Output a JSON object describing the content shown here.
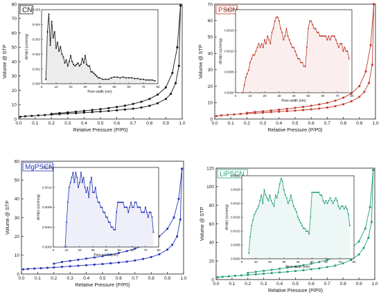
{
  "chart_data": [
    {
      "label": "CN",
      "color": "#111111",
      "type": "line",
      "xlabel": "Relative Pressure (P/P0)",
      "ylabel": "Volume @ STP",
      "xlim": [
        0.0,
        1.0
      ],
      "ylim": [
        0,
        80
      ],
      "xticks": [
        "0.0",
        "0.1",
        "0.2",
        "0.3",
        "0.4",
        "0.5",
        "0.6",
        "0.7",
        "0.8",
        "0.9",
        "1.0"
      ],
      "yticks": [
        "0",
        "10",
        "20",
        "30",
        "40",
        "50",
        "60",
        "70",
        "80"
      ],
      "series": [
        {
          "x": [
            0.01,
            0.04,
            0.08,
            0.12,
            0.16,
            0.2,
            0.25,
            0.3,
            0.35,
            0.4,
            0.45,
            0.5,
            0.55,
            0.6,
            0.65,
            0.7,
            0.75,
            0.8,
            0.85,
            0.9,
            0.93,
            0.96,
            0.98,
            0.99
          ],
          "y": [
            1.5,
            1.9,
            2.2,
            2.5,
            2.8,
            3.1,
            3.4,
            3.8,
            4.1,
            4.5,
            4.8,
            5.2,
            5.6,
            6.1,
            6.6,
            7.2,
            8.0,
            9.2,
            11.0,
            14.0,
            17.5,
            25,
            37,
            79
          ]
        },
        {
          "x": [
            0.99,
            0.97,
            0.94,
            0.9,
            0.85,
            0.8,
            0.75,
            0.7,
            0.65,
            0.6,
            0.55,
            0.5,
            0.45,
            0.4,
            0.35,
            0.3,
            0.25,
            0.2
          ],
          "y": [
            79,
            50,
            32,
            22,
            17,
            14,
            12,
            10.5,
            9.3,
            8.4,
            7.6,
            6.9,
            6.3,
            5.7,
            5.1,
            4.6,
            4.1,
            3.6
          ]
        }
      ],
      "inset": {
        "xlabel": "Pore width (nm)",
        "ylabel": "dV/d(r) (cc/nm/g)",
        "xlim": [
          0,
          80
        ],
        "ylim": [
          0,
          0.005
        ],
        "xticks": [
          "0",
          "10",
          "20",
          "30",
          "40",
          "50",
          "60",
          "70",
          "80"
        ],
        "yticks": [
          "0.000",
          "0.001",
          "0.002",
          "0.003",
          "0.004",
          "0.005"
        ],
        "x": [
          3,
          4,
          5,
          6,
          7,
          8,
          9,
          10,
          11,
          12,
          13,
          14,
          15,
          16,
          17,
          18,
          19,
          20,
          21,
          22,
          23,
          24,
          25,
          26,
          27,
          28,
          29,
          30,
          31,
          32,
          33,
          34,
          35,
          36,
          37,
          38,
          39,
          40,
          42,
          44,
          46,
          48,
          50,
          52,
          54,
          56,
          58,
          60,
          62,
          64,
          66,
          68,
          70,
          72,
          74,
          76,
          78
        ],
        "y": [
          0.0003,
          0.0035,
          0.0047,
          0.0026,
          0.0042,
          0.0031,
          0.0035,
          0.0024,
          0.0028,
          0.0022,
          0.0025,
          0.002,
          0.0018,
          0.0014,
          0.0016,
          0.0012,
          0.0015,
          0.0019,
          0.0015,
          0.0013,
          0.0012,
          0.0013,
          0.0014,
          0.0012,
          0.0013,
          0.0017,
          0.0014,
          0.0019,
          0.0013,
          0.0012,
          0.0012,
          0.0008,
          0.0008,
          0.0007,
          0.0006,
          0.0005,
          0.0004,
          0.0004,
          0.0003,
          0.0003,
          0.0003,
          0.0004,
          0.00045,
          0.00045,
          0.0004,
          0.00045,
          0.0004,
          0.0004,
          0.0004,
          0.00035,
          0.00035,
          0.0003,
          0.0003,
          0.00025,
          0.00025,
          0.00025,
          0.0002
        ]
      }
    },
    {
      "label": "PSCN",
      "color": "#c0392b",
      "type": "line",
      "xlabel": "Relative Pressure (P/P0)",
      "ylabel": "Volume @ STP",
      "xlim": [
        0.0,
        1.0
      ],
      "ylim": [
        0,
        70
      ],
      "xticks": [
        "0.0",
        "0.1",
        "0.2",
        "0.3",
        "0.4",
        "0.5",
        "0.6",
        "0.7",
        "0.8",
        "0.9",
        "1.0"
      ],
      "yticks": [
        "0",
        "10",
        "20",
        "30",
        "40",
        "50",
        "60",
        "70"
      ],
      "series": [
        {
          "x": [
            0.01,
            0.04,
            0.08,
            0.12,
            0.16,
            0.2,
            0.25,
            0.3,
            0.35,
            0.4,
            0.45,
            0.5,
            0.55,
            0.6,
            0.65,
            0.7,
            0.75,
            0.8,
            0.85,
            0.9,
            0.93,
            0.96,
            0.98,
            0.99
          ],
          "y": [
            1.8,
            2.2,
            2.5,
            2.8,
            3.1,
            3.3,
            3.6,
            3.9,
            4.2,
            4.5,
            4.8,
            5.1,
            5.5,
            5.9,
            6.4,
            7.0,
            7.8,
            9.0,
            10.8,
            13.5,
            16.5,
            22,
            33,
            70
          ]
        },
        {
          "x": [
            0.99,
            0.97,
            0.94,
            0.9,
            0.85,
            0.8,
            0.75,
            0.7,
            0.65,
            0.6,
            0.55,
            0.5,
            0.45,
            0.4,
            0.35,
            0.3,
            0.25,
            0.2
          ],
          "y": [
            70,
            45,
            29,
            20,
            15.5,
            13,
            11.2,
            9.9,
            8.9,
            8.1,
            7.4,
            6.8,
            6.2,
            5.7,
            5.2,
            4.7,
            4.3,
            3.8
          ]
        }
      ],
      "inset": {
        "xlabel": "Pore width (nm)",
        "ylabel": "dV/d(r) (cc/nm/g)",
        "xlim": [
          0,
          80
        ],
        "ylim": [
          0,
          0.0022
        ],
        "xticks": [
          "0",
          "10",
          "20",
          "30",
          "40",
          "50",
          "60",
          "70",
          "80"
        ],
        "yticks": [
          "0.0000",
          "0.0005",
          "0.0010",
          "0.0015",
          "0.0020"
        ],
        "x": [
          5,
          6,
          7,
          8,
          9,
          10,
          11,
          12,
          13,
          14,
          15,
          16,
          17,
          18,
          19,
          20,
          21,
          22,
          23,
          24,
          25,
          26,
          27,
          28,
          29,
          30,
          31,
          32,
          33,
          34,
          35,
          36,
          37,
          38,
          39,
          40,
          41,
          42,
          43,
          44,
          45,
          46,
          47,
          48,
          49,
          50,
          51,
          52,
          53,
          54,
          55,
          56,
          57,
          58,
          59,
          60,
          61,
          62,
          63,
          64,
          65,
          66,
          67,
          68,
          69,
          70,
          71,
          72,
          73,
          74,
          75,
          76,
          77,
          78
        ],
        "y": [
          0.0,
          0.0002,
          0.0004,
          0.0005,
          0.0006,
          0.0008,
          0.0009,
          0.001,
          0.001,
          0.0011,
          0.0012,
          0.0013,
          0.0012,
          0.0013,
          0.0012,
          0.0014,
          0.0013,
          0.0015,
          0.0014,
          0.0013,
          0.0016,
          0.0017,
          0.0019,
          0.002,
          0.002,
          0.0019,
          0.0017,
          0.0016,
          0.0014,
          0.0015,
          0.0017,
          0.0015,
          0.0014,
          0.0013,
          0.0012,
          0.0012,
          0.0011,
          0.001,
          0.0009,
          0.0009,
          0.0008,
          0.0008,
          0.0007,
          0.0007,
          0.0012,
          0.0017,
          0.0019,
          0.0019,
          0.0018,
          0.0017,
          0.0017,
          0.0016,
          0.0016,
          0.0015,
          0.0015,
          0.0015,
          0.0015,
          0.0015,
          0.0014,
          0.0015,
          0.0014,
          0.0015,
          0.0015,
          0.0015,
          0.0014,
          0.0013,
          0.0012,
          0.0013,
          0.0013,
          0.0011,
          0.0012,
          0.0011,
          0.0011,
          0.0009
        ]
      }
    },
    {
      "label": "MgPSCN",
      "color": "#2233b8",
      "type": "line",
      "xlabel": "Relative Pressure (P/P0)",
      "ylabel": "Volume @ STP",
      "xlim": [
        0.0,
        1.0
      ],
      "ylim": [
        0,
        60
      ],
      "xticks": [
        "0.0",
        "0.1",
        "0.2",
        "0.3",
        "0.4",
        "0.5",
        "0.6",
        "0.7",
        "0.8",
        "0.9",
        "1.0"
      ],
      "yticks": [
        "0",
        "10",
        "20",
        "30",
        "40",
        "50",
        "60"
      ],
      "series": [
        {
          "x": [
            0.01,
            0.04,
            0.08,
            0.12,
            0.16,
            0.2,
            0.25,
            0.3,
            0.35,
            0.4,
            0.45,
            0.5,
            0.55,
            0.6,
            0.65,
            0.7,
            0.75,
            0.8,
            0.85,
            0.9,
            0.93,
            0.96,
            0.98,
            0.99
          ],
          "y": [
            2.5,
            2.7,
            2.9,
            3.1,
            3.3,
            3.5,
            3.8,
            4.1,
            4.4,
            4.7,
            5.0,
            5.3,
            5.7,
            6.1,
            6.6,
            7.2,
            8.0,
            9.0,
            10.5,
            13.0,
            15.5,
            20,
            29,
            56
          ]
        },
        {
          "x": [
            0.99,
            0.97,
            0.94,
            0.9,
            0.85,
            0.8,
            0.75,
            0.7,
            0.65,
            0.6,
            0.55,
            0.5,
            0.45,
            0.4,
            0.35,
            0.3,
            0.25,
            0.2
          ],
          "y": [
            56,
            40,
            30,
            24,
            20,
            17,
            15,
            13.5,
            12.2,
            11.2,
            10.3,
            9.5,
            8.8,
            8.2,
            7.6,
            7.0,
            6.4,
            5.5
          ]
        }
      ],
      "inset": {
        "xlabel": "Pore width (nm)",
        "ylabel": "dV/d(r) (cc/nm/g)",
        "xlim": [
          0,
          80
        ],
        "ylim": [
          0,
          0.0016
        ],
        "xticks": [
          "0",
          "10",
          "20",
          "30",
          "40",
          "50",
          "60",
          "70",
          "80"
        ],
        "yticks": [
          "0.0000",
          "0.0004",
          "0.0008",
          "0.0012",
          "0.0016"
        ],
        "x": [
          9,
          10,
          11,
          12,
          13,
          14,
          15,
          16,
          17,
          18,
          19,
          20,
          21,
          22,
          23,
          24,
          25,
          26,
          27,
          28,
          29,
          30,
          31,
          32,
          33,
          34,
          35,
          36,
          37,
          38,
          39,
          40,
          41,
          42,
          43,
          44,
          45,
          46,
          47,
          48,
          49,
          50,
          51,
          52,
          53,
          54,
          55,
          56,
          57,
          58,
          59,
          60,
          61,
          62,
          63,
          64,
          65,
          66,
          67,
          68,
          69,
          70,
          71,
          72,
          73,
          74,
          75,
          76
        ],
        "y": [
          0.0,
          0.0005,
          0.0009,
          0.0012,
          0.0013,
          0.0014,
          0.0015,
          0.0013,
          0.0015,
          0.0014,
          0.0012,
          0.0013,
          0.0015,
          0.0013,
          0.0014,
          0.0012,
          0.0011,
          0.0012,
          0.001,
          0.0013,
          0.0014,
          0.0011,
          0.0011,
          0.0012,
          0.001,
          0.0009,
          0.0009,
          0.0008,
          0.0008,
          0.0007,
          0.0007,
          0.0006,
          0.0006,
          0.0005,
          0.0005,
          0.0004,
          0.0004,
          0.00035,
          0.00035,
          0.0007,
          0.0009,
          0.0009,
          0.0009,
          0.0009,
          0.0009,
          0.0008,
          0.0008,
          0.0008,
          0.0007,
          0.0008,
          0.0009,
          0.0008,
          0.0008,
          0.0009,
          0.0009,
          0.0008,
          0.0008,
          0.0008,
          0.0007,
          0.0007,
          0.0007,
          0.0008,
          0.0007,
          0.0006,
          0.0007,
          0.0007,
          0.0006,
          0.0003
        ]
      }
    },
    {
      "label": "LiPSCN",
      "color": "#1f9e7a",
      "type": "line",
      "xlabel": "Relative Pressure (P/P0)",
      "ylabel": "Volume @ STP",
      "xlim": [
        0.0,
        1.0
      ],
      "ylim": [
        0,
        120
      ],
      "xticks": [
        "0.0",
        "0.1",
        "0.2",
        "0.3",
        "0.4",
        "0.5",
        "0.6",
        "0.7",
        "0.8",
        "0.9",
        "1.0"
      ],
      "yticks": [
        "0",
        "20",
        "40",
        "60",
        "80",
        "100",
        "120"
      ],
      "series": [
        {
          "x": [
            0.01,
            0.04,
            0.08,
            0.12,
            0.16,
            0.2,
            0.25,
            0.3,
            0.35,
            0.4,
            0.45,
            0.5,
            0.55,
            0.6,
            0.65,
            0.7,
            0.75,
            0.8,
            0.85,
            0.9,
            0.93,
            0.96,
            0.98,
            0.99
          ],
          "y": [
            2.5,
            3.0,
            3.5,
            4.0,
            4.5,
            5.0,
            5.6,
            6.3,
            7.0,
            7.7,
            8.4,
            9.2,
            10.0,
            11.0,
            12.0,
            13.5,
            15.0,
            17.5,
            21,
            27,
            34,
            45,
            62,
            118
          ]
        },
        {
          "x": [
            0.99,
            0.97,
            0.94,
            0.9,
            0.85,
            0.8,
            0.75,
            0.7,
            0.65,
            0.6,
            0.55,
            0.5,
            0.45,
            0.4,
            0.35,
            0.3,
            0.25,
            0.2
          ],
          "y": [
            118,
            78,
            55,
            41,
            33,
            28,
            24,
            21,
            19,
            17,
            15.5,
            14,
            12.8,
            11.6,
            10.5,
            9.4,
            8.3,
            7.2
          ]
        }
      ],
      "inset": {
        "xlabel": "Pore width (nm)",
        "ylabel": "dV/d(r) (cc/nm/g)",
        "xlim": [
          0,
          80
        ],
        "ylim": [
          0,
          0.003
        ],
        "xticks": [
          "0",
          "10",
          "20",
          "30",
          "40",
          "50",
          "60",
          "70",
          "80"
        ],
        "yticks": [
          "0.0000",
          "0.0005",
          "0.0010",
          "0.0015",
          "0.0020",
          "0.0025",
          "0.0030"
        ],
        "x": [
          5,
          6,
          7,
          8,
          9,
          10,
          11,
          12,
          13,
          14,
          15,
          16,
          17,
          18,
          19,
          20,
          21,
          22,
          23,
          24,
          25,
          26,
          27,
          28,
          29,
          30,
          31,
          32,
          33,
          34,
          35,
          36,
          37,
          38,
          39,
          40,
          41,
          42,
          43,
          44,
          45,
          46,
          47,
          48,
          49,
          50,
          51,
          52,
          53,
          54,
          55,
          56,
          57,
          58,
          59,
          60,
          61,
          62,
          63,
          64,
          65,
          66,
          67,
          68,
          69,
          70,
          71,
          72,
          73,
          74,
          75,
          76,
          77
        ],
        "y": [
          0.0002,
          0.0008,
          0.0012,
          0.0014,
          0.0016,
          0.0017,
          0.0018,
          0.0019,
          0.0021,
          0.0023,
          0.002,
          0.0025,
          0.0023,
          0.0022,
          0.0021,
          0.0023,
          0.0021,
          0.002,
          0.0019,
          0.0023,
          0.0022,
          0.0024,
          0.0027,
          0.0029,
          0.0028,
          0.0025,
          0.0023,
          0.0022,
          0.002,
          0.0021,
          0.0023,
          0.0021,
          0.0019,
          0.0018,
          0.0017,
          0.0015,
          0.0014,
          0.0013,
          0.0012,
          0.0011,
          0.0011,
          0.001,
          0.001,
          0.0009,
          0.0015,
          0.0024,
          0.0024,
          0.0024,
          0.0024,
          0.0024,
          0.0024,
          0.0023,
          0.0023,
          0.0021,
          0.002,
          0.0021,
          0.002,
          0.0021,
          0.0022,
          0.0021,
          0.002,
          0.0021,
          0.0022,
          0.0021,
          0.0019,
          0.0018,
          0.0019,
          0.0019,
          0.0018,
          0.0019,
          0.0018,
          0.0016,
          0.0012
        ]
      }
    }
  ]
}
